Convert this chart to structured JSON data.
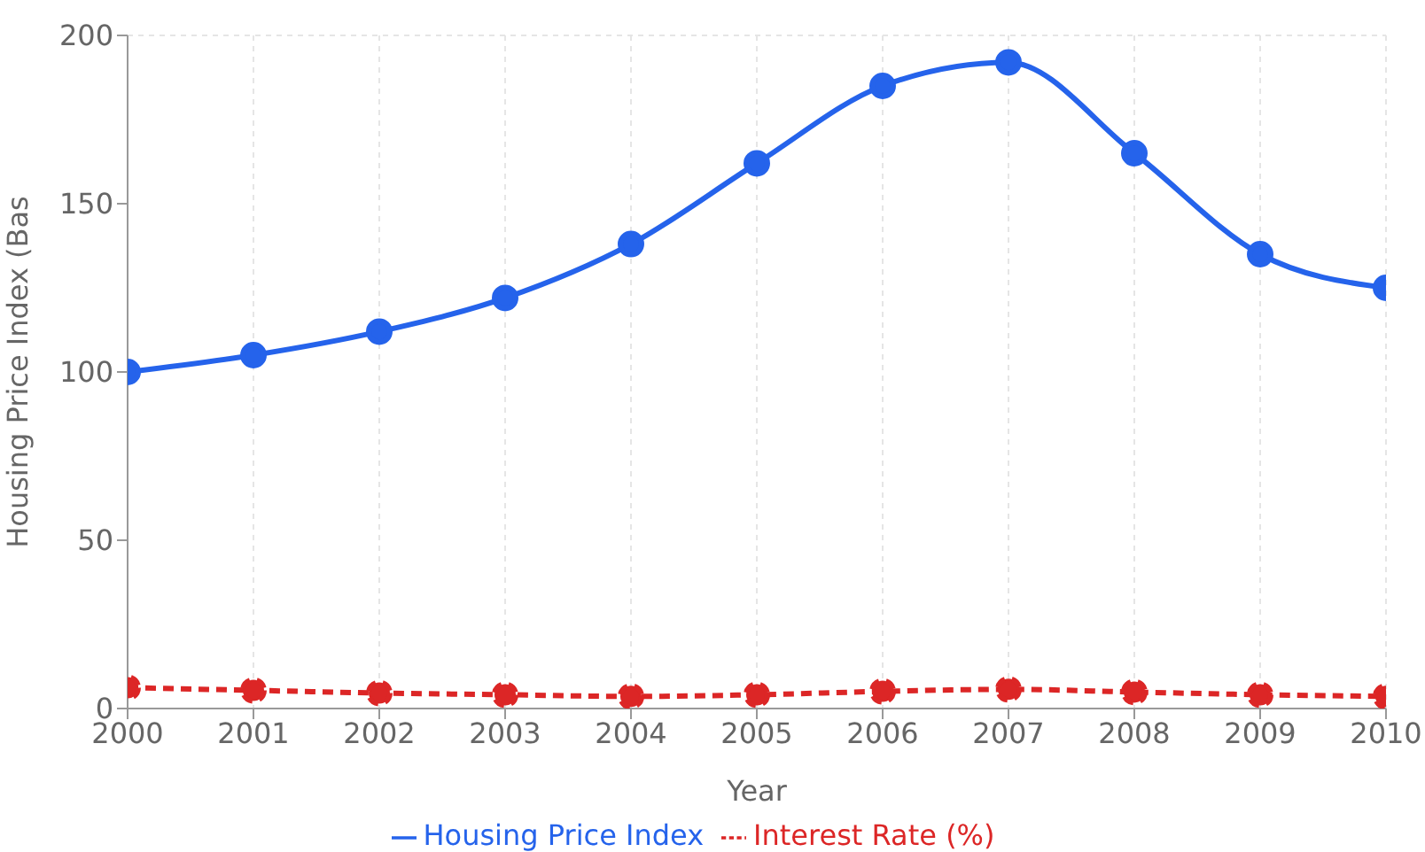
{
  "chart_data": {
    "type": "line",
    "xlabel": "Year",
    "ylabel": "Housing Price Index (Bas",
    "x": [
      2000,
      2001,
      2002,
      2003,
      2004,
      2005,
      2006,
      2007,
      2008,
      2009,
      2010
    ],
    "series": [
      {
        "name": "Housing Price Index",
        "color": "#2563eb",
        "values": [
          100,
          105,
          112,
          122,
          138,
          162,
          185,
          192,
          165,
          135,
          125
        ],
        "line_style": "solid"
      },
      {
        "name": "Interest Rate (%)",
        "color": "#dc2626",
        "values": [
          6.2,
          5.4,
          4.6,
          4.1,
          3.6,
          4.1,
          5.1,
          5.7,
          4.9,
          4.1,
          3.6
        ],
        "line_style": "dashed"
      }
    ],
    "xlim": [
      2000,
      2010
    ],
    "xticks": [
      2000,
      2001,
      2002,
      2003,
      2004,
      2005,
      2006,
      2007,
      2008,
      2009,
      2010
    ],
    "ylim": [
      0,
      200
    ],
    "yticks": [
      0,
      50,
      100,
      150,
      200
    ],
    "grid": true,
    "legend": "bottom",
    "marker": "circle"
  }
}
